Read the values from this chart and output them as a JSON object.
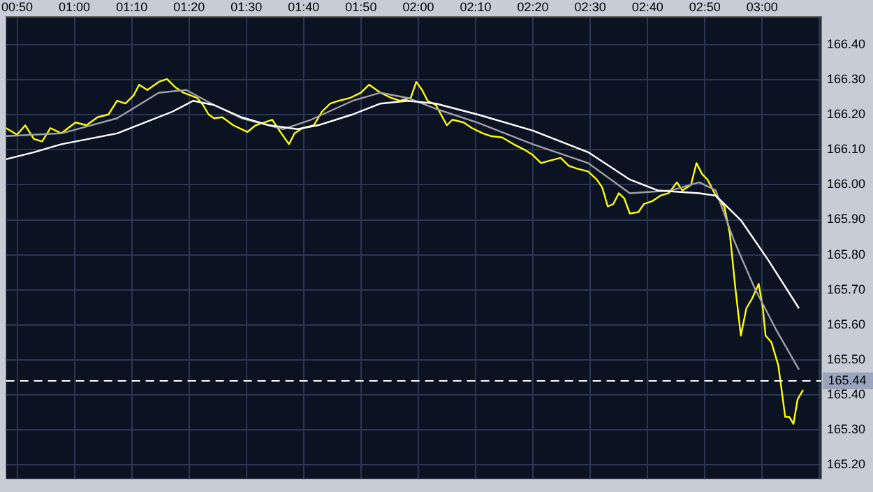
{
  "chart_data": {
    "type": "line",
    "grid": true,
    "marker": "none",
    "xlim": [
      0.801,
      3.172
    ],
    "xticks": [
      {
        "value": 0.8333,
        "label": "00:50"
      },
      {
        "value": 1,
        "label": "01:00"
      },
      {
        "value": 1.1667,
        "label": "01:10"
      },
      {
        "value": 1.3333,
        "label": "01:20"
      },
      {
        "value": 1.5,
        "label": "01:30"
      },
      {
        "value": 1.6667,
        "label": "01:40"
      },
      {
        "value": 1.8333,
        "label": "01:50"
      },
      {
        "value": 2,
        "label": "02:00"
      },
      {
        "value": 2.1667,
        "label": "02:10"
      },
      {
        "value": 2.3333,
        "label": "02:20"
      },
      {
        "value": 2.5,
        "label": "02:30"
      },
      {
        "value": 2.6667,
        "label": "02:40"
      },
      {
        "value": 2.8333,
        "label": "02:50"
      },
      {
        "value": 3,
        "label": "03:00"
      },
      {
        "value": 3.1667,
        "label": null
      }
    ],
    "ylim": [
      165.16,
      166.48
    ],
    "yticks": [
      {
        "value": 165.2,
        "label": "165.20"
      },
      {
        "value": 165.3,
        "label": "165.30"
      },
      {
        "value": 165.4,
        "label": "165.40"
      },
      {
        "value": 165.5,
        "label": "165.50"
      },
      {
        "value": 165.6,
        "label": "165.60"
      },
      {
        "value": 165.7,
        "label": "165.70"
      },
      {
        "value": 165.8,
        "label": "165.80"
      },
      {
        "value": 165.9,
        "label": "165.90"
      },
      {
        "value": 166,
        "label": "166.00"
      },
      {
        "value": 166.1,
        "label": "166.10"
      },
      {
        "value": 166.2,
        "label": "166.20"
      },
      {
        "value": 166.3,
        "label": "166.30"
      },
      {
        "value": 166.4,
        "label": "166.40"
      }
    ],
    "ref_lines": [
      {
        "axis": "y",
        "value": 165.44,
        "label": "165.44",
        "color": "#ffffff",
        "line_style": "dashed"
      }
    ],
    "series": [
      {
        "color": "#ffffff",
        "x": [
          0.801,
          0.882,
          0.962,
          1.124,
          1.204,
          1.285,
          1.345,
          1.406,
          1.486,
          1.567,
          1.648,
          1.708,
          1.809,
          1.89,
          1.97,
          2.051,
          2.172,
          2.333,
          2.494,
          2.615,
          2.696,
          2.817,
          2.865,
          2.938,
          3.019,
          3.107
        ],
        "values": [
          166.073,
          166.093,
          166.116,
          166.147,
          166.178,
          166.209,
          166.24,
          166.228,
          166.193,
          166.17,
          166.159,
          166.17,
          166.201,
          166.232,
          166.24,
          166.232,
          166.201,
          166.155,
          166.093,
          166.015,
          165.984,
          165.976,
          165.969,
          165.899,
          165.783,
          165.647
        ]
      },
      {
        "color": "#a0a0a8",
        "x": [
          0.801,
          0.962,
          1.124,
          1.245,
          1.325,
          1.406,
          1.486,
          1.607,
          1.688,
          1.809,
          1.89,
          1.97,
          2.051,
          2.172,
          2.333,
          2.494,
          2.615,
          2.736,
          2.817,
          2.865,
          2.918,
          2.978,
          3.039,
          3.107
        ],
        "values": [
          166.139,
          166.147,
          166.19,
          166.263,
          166.271,
          166.228,
          166.19,
          166.159,
          166.186,
          166.24,
          166.263,
          166.248,
          166.217,
          166.178,
          166.116,
          166.062,
          165.976,
          165.984,
          166.007,
          165.984,
          165.841,
          165.705,
          165.589,
          165.472
        ]
      },
      {
        "color": "#ffff00",
        "x": [
          0.801,
          0.833,
          0.857,
          0.882,
          0.906,
          0.93,
          0.962,
          1.003,
          1.035,
          1.067,
          1.099,
          1.124,
          1.148,
          1.172,
          1.188,
          1.212,
          1.245,
          1.269,
          1.293,
          1.317,
          1.357,
          1.374,
          1.39,
          1.406,
          1.43,
          1.462,
          1.486,
          1.503,
          1.527,
          1.551,
          1.575,
          1.599,
          1.624,
          1.64,
          1.664,
          1.696,
          1.72,
          1.744,
          1.769,
          1.801,
          1.833,
          1.857,
          1.89,
          1.922,
          1.946,
          1.978,
          1.994,
          2.011,
          2.027,
          2.051,
          2.083,
          2.099,
          2.132,
          2.156,
          2.188,
          2.212,
          2.244,
          2.277,
          2.309,
          2.333,
          2.357,
          2.382,
          2.414,
          2.438,
          2.462,
          2.494,
          2.519,
          2.535,
          2.551,
          2.567,
          2.583,
          2.599,
          2.615,
          2.64,
          2.656,
          2.68,
          2.704,
          2.728,
          2.752,
          2.768,
          2.793,
          2.809,
          2.825,
          2.841,
          2.865,
          2.89,
          2.906,
          2.922,
          2.938,
          2.954,
          2.97,
          2.99,
          3.002,
          3.01,
          3.027,
          3.047,
          3.067,
          3.079,
          3.091,
          3.103,
          3.119
        ],
        "values": [
          166.162,
          166.143,
          166.17,
          166.131,
          166.124,
          166.162,
          166.147,
          166.178,
          166.17,
          166.193,
          166.201,
          166.24,
          166.232,
          166.255,
          166.286,
          166.271,
          166.294,
          166.302,
          166.279,
          166.263,
          166.248,
          166.228,
          166.201,
          166.19,
          166.193,
          166.17,
          166.159,
          166.151,
          166.17,
          166.178,
          166.186,
          166.151,
          166.116,
          166.147,
          166.162,
          166.17,
          166.209,
          166.232,
          166.24,
          166.248,
          166.263,
          166.286,
          166.263,
          166.248,
          166.24,
          166.248,
          166.294,
          166.271,
          166.24,
          166.228,
          166.17,
          166.186,
          166.178,
          166.162,
          166.147,
          166.139,
          166.135,
          166.116,
          166.1,
          166.085,
          166.062,
          166.069,
          166.077,
          166.054,
          166.046,
          166.038,
          166.015,
          165.992,
          165.938,
          165.945,
          165.976,
          165.961,
          165.918,
          165.922,
          165.945,
          165.953,
          165.969,
          165.976,
          166.007,
          165.984,
          166.0,
          166.062,
          166.031,
          166.015,
          165.969,
          165.938,
          165.86,
          165.705,
          165.569,
          165.647,
          165.674,
          165.717,
          165.647,
          165.569,
          165.55,
          165.484,
          165.337,
          165.337,
          165.317,
          165.387,
          165.414
        ]
      }
    ]
  }
}
